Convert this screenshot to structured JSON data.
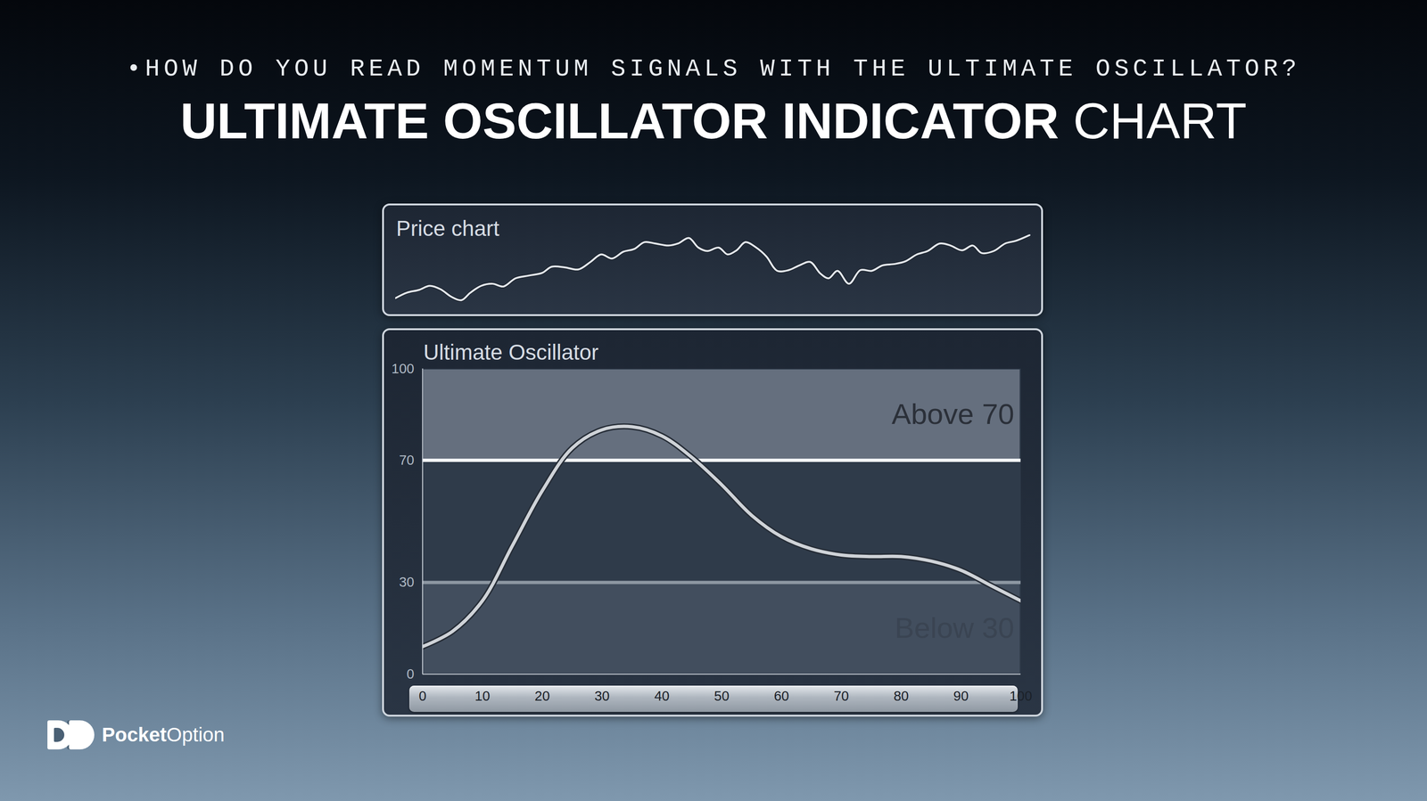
{
  "header": {
    "kicker": "•HOW DO YOU READ MOMENTUM SIGNALS WITH THE ULTIMATE OSCILLATOR?",
    "title_bold": "ULTIMATE OSCILLATOR INDICATOR",
    "title_light": "CHART"
  },
  "brand": {
    "bold": "Pocket",
    "light": "Option"
  },
  "chart_data": [
    {
      "type": "line",
      "title": "Price chart",
      "x": [
        0,
        1.8,
        3.7,
        5.4,
        7.1,
        8.8,
        10.4,
        11.8,
        13.5,
        15.3,
        17.0,
        18.9,
        21.0,
        23.1,
        24.6,
        26.7,
        28.8,
        30.7,
        32.4,
        34.1,
        35.9,
        37.6,
        39.2,
        40.9,
        43.0,
        44.5,
        46.2,
        47.7,
        49.1,
        50.9,
        52.3,
        53.7,
        55.1,
        56.8,
        58.4,
        60.1,
        61.9,
        63.6,
        65.3,
        66.9,
        68.2,
        69.6,
        71.4,
        73.2,
        75.0,
        76.7,
        78.6,
        80.3,
        82.1,
        83.8,
        85.7,
        87.4,
        89.2,
        90.9,
        92.3,
        94.2,
        96.0,
        97.7,
        100
      ],
      "values": [
        7,
        15,
        19,
        25,
        20,
        9,
        4,
        15,
        25,
        28,
        24,
        36,
        40,
        44,
        53,
        52,
        49,
        60,
        71,
        65,
        75,
        79,
        89,
        87,
        84,
        87,
        95,
        81,
        76,
        81,
        71,
        77,
        89,
        81,
        68,
        47,
        48,
        55,
        60,
        43,
        36,
        47,
        28,
        48,
        47,
        55,
        57,
        61,
        71,
        76,
        87,
        84,
        77,
        84,
        73,
        76,
        87,
        91,
        100
      ],
      "xlim": [
        0,
        100
      ],
      "ylim": [
        0,
        100
      ],
      "tick_labels": false,
      "color": "#e3e7ec"
    },
    {
      "type": "line",
      "title": "Ultimate Oscillator",
      "x": [
        0,
        5,
        10,
        15,
        20,
        25,
        30,
        35,
        40,
        45,
        50,
        55,
        60,
        65,
        70,
        75,
        80,
        85,
        90,
        95,
        100
      ],
      "values": [
        9,
        14,
        24,
        42,
        60,
        74,
        80,
        81,
        78,
        71,
        62,
        52,
        45,
        41,
        39,
        38.5,
        38.5,
        37,
        34,
        29,
        24
      ],
      "xlim": [
        0,
        100
      ],
      "xticks": [
        0,
        10,
        20,
        30,
        40,
        50,
        60,
        70,
        80,
        90,
        100
      ],
      "ylim": [
        0,
        100
      ],
      "yticks": [
        0,
        30,
        70,
        100
      ],
      "color": "#cfd3d8",
      "levels": [
        70,
        30
      ],
      "bands": [
        {
          "label": "Above 70",
          "from": 70,
          "to": 100
        },
        {
          "label": "Below 30",
          "from": 0,
          "to": 30
        }
      ]
    }
  ]
}
